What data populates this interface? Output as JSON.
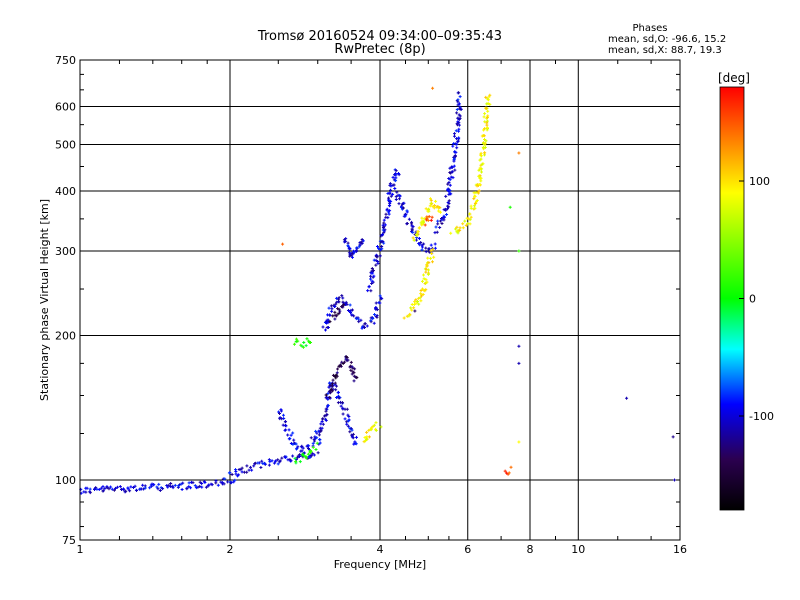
{
  "chart_data": {
    "type": "scatter",
    "title": "Tromsø 20160524 09:34:00–09:35:43",
    "subtitle": "RwPretec (8p)",
    "xlabel": "Frequency [MHz]",
    "ylabel": "Stationary phase Virtual Height [km]",
    "x_scale": "log",
    "y_scale": "log",
    "xlim": [
      1,
      16
    ],
    "ylim": [
      75,
      750
    ],
    "x_ticks": [
      1,
      2,
      4,
      6,
      8,
      10,
      16
    ],
    "y_ticks": [
      75,
      100,
      200,
      300,
      400,
      500,
      600,
      750
    ],
    "grid": true,
    "phases_box": {
      "heading": "Phases",
      "line_o": "mean, sd,O: -96.6, 15.2",
      "line_x": "mean, sd,X:  88.7, 19.3"
    },
    "colorbar": {
      "label": "[deg]",
      "range": [
        -180,
        180
      ],
      "ticks": [
        100,
        0,
        -100
      ],
      "colors": [
        "#ff0000",
        "#ffff00",
        "#00ff00",
        "#00ffff",
        "#0000ff",
        "#2b0050",
        "#000000"
      ]
    },
    "series": [
      {
        "color_phase": -100,
        "segments": [
          {
            "x": [
              1.0,
              1.2,
              1.4,
              1.6,
              1.8,
              1.95,
              2.05
            ],
            "y": [
              95,
              96,
              96.5,
              97,
              98,
              99,
              100
            ]
          },
          {
            "x": [
              2.0,
              2.2,
              2.4,
              2.6,
              2.8,
              3.0
            ],
            "y": [
              102,
              106,
              109,
              111,
              112,
              113
            ]
          },
          {
            "x": [
              2.5,
              2.6,
              2.7,
              2.8,
              2.9,
              3.0
            ],
            "y": [
              140,
              128,
              118,
              115,
              118,
              125
            ]
          },
          {
            "x": [
              3.0,
              3.1,
              3.2,
              3.3,
              3.4,
              3.5,
              3.6
            ],
            "y": [
              120,
              135,
              160,
              150,
              140,
              125,
              118
            ]
          },
          {
            "x": [
              3.1,
              3.2,
              3.35,
              3.5,
              3.7,
              3.9,
              4.0
            ],
            "y": [
              205,
              230,
              240,
              225,
              210,
              215,
              240
            ]
          },
          {
            "x": [
              3.8,
              3.95,
              4.1,
              4.2,
              4.3,
              4.4
            ],
            "y": [
              250,
              290,
              340,
              400,
              440,
              430
            ]
          },
          {
            "x": [
              4.3,
              4.4,
              4.6,
              4.8,
              5.0,
              5.2
            ],
            "y": [
              400,
              380,
              340,
              310,
              300,
              310
            ]
          },
          {
            "x": [
              5.2,
              5.4,
              5.55,
              5.7,
              5.8
            ],
            "y": [
              330,
              360,
              420,
              520,
              640
            ]
          },
          {
            "x": [
              3.4,
              3.5,
              3.6,
              3.7
            ],
            "y": [
              320,
              290,
              300,
              320
            ]
          }
        ]
      },
      {
        "color_phase": 100,
        "segments": [
          {
            "x": [
              4.5,
              4.7,
              4.9,
              5.0,
              5.1
            ],
            "y": [
              220,
              230,
              250,
              280,
              300
            ]
          },
          {
            "x": [
              4.7,
              4.9,
              5.1,
              5.3
            ],
            "y": [
              320,
              350,
              380,
              360
            ]
          },
          {
            "x": [
              5.6,
              5.8,
              6.0,
              6.2,
              6.4,
              6.6
            ],
            "y": [
              330,
              335,
              345,
              380,
              460,
              640
            ]
          },
          {
            "x": [
              3.7,
              3.9,
              4.0
            ],
            "y": [
              120,
              130,
              128
            ]
          }
        ]
      },
      {
        "color_phase": 10,
        "segments": [
          {
            "x": [
              2.7,
              2.8,
              2.9
            ],
            "y": [
              195,
              192,
              198
            ]
          },
          {
            "x": [
              2.7,
              2.8,
              2.9,
              3.0
            ],
            "y": [
              110,
              112,
              115,
              118
            ]
          }
        ]
      },
      {
        "color_phase": -135,
        "segments": [
          {
            "x": [
              3.15,
              3.3,
              3.45,
              3.6
            ],
            "y": [
              150,
              170,
              180,
              160
            ]
          },
          {
            "x": [
              3.2,
              3.3,
              3.4
            ],
            "y": [
              215,
              225,
              235
            ]
          }
        ]
      },
      {
        "color_phase": 160,
        "segments": [
          {
            "x": [
              4.9,
              5.0,
              5.1
            ],
            "y": [
              345,
              350,
              355
            ]
          },
          {
            "x": [
              7.2,
              7.3
            ],
            "y": [
              103,
              106
            ]
          }
        ]
      }
    ],
    "isolated_points": [
      {
        "x": 2.55,
        "y": 310,
        "phase": 150
      },
      {
        "x": 4.7,
        "y": 225,
        "phase": -130
      },
      {
        "x": 5.1,
        "y": 655,
        "phase": 140
      },
      {
        "x": 7.6,
        "y": 190,
        "phase": -110
      },
      {
        "x": 7.6,
        "y": 175,
        "phase": -110
      },
      {
        "x": 7.6,
        "y": 300,
        "phase": 20
      },
      {
        "x": 7.6,
        "y": 480,
        "phase": 140
      },
      {
        "x": 7.6,
        "y": 120,
        "phase": 100
      },
      {
        "x": 7.3,
        "y": 370,
        "phase": 10
      },
      {
        "x": 12.5,
        "y": 148,
        "phase": -110
      },
      {
        "x": 15.5,
        "y": 123,
        "phase": -120
      },
      {
        "x": 15.6,
        "y": 100,
        "phase": -110
      }
    ]
  }
}
